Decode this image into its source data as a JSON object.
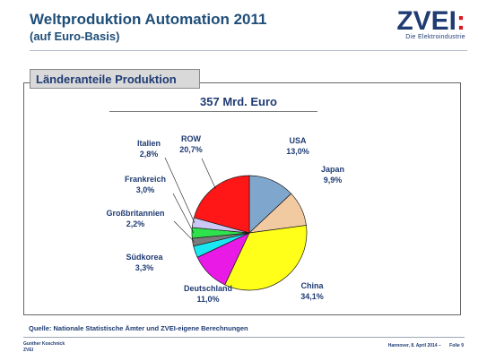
{
  "header": {
    "title": "Weltproduktion Automation 2011",
    "subtitle": "(auf Euro-Basis)"
  },
  "logo": {
    "text": "ZVEI",
    "colon": ":",
    "tagline": "Die Elektroindustrie"
  },
  "section_title": "Länderanteile Produktion",
  "chart_data": {
    "type": "pie",
    "total_label": "357 Mrd. Euro",
    "slices": [
      {
        "label": "USA",
        "value": 13.0,
        "value_label": "13,0%",
        "color": "#7fa7cd"
      },
      {
        "label": "Japan",
        "value": 9.9,
        "value_label": "9,9%",
        "color": "#f2caa2"
      },
      {
        "label": "China",
        "value": 34.1,
        "value_label": "34,1%",
        "color": "#ffff1a"
      },
      {
        "label": "Deutschland",
        "value": 11.0,
        "value_label": "11,0%",
        "color": "#ea1ae6"
      },
      {
        "label": "Südkorea",
        "value": 3.3,
        "value_label": "3,3%",
        "color": "#19e8f2"
      },
      {
        "label": "Großbritannien",
        "value": 2.2,
        "value_label": "2,2%",
        "color": "#7c7c7c"
      },
      {
        "label": "Frankreich",
        "value": 3.0,
        "value_label": "3,0%",
        "color": "#2fe24d"
      },
      {
        "label": "Italien",
        "value": 2.8,
        "value_label": "2,8%",
        "color": "#cbc8f5"
      },
      {
        "label": "ROW",
        "value": 20.7,
        "value_label": "20,7%",
        "color": "#ff1616"
      }
    ]
  },
  "source": "Quelle: Nationale Statistische Ämter und ZVEI-eigene Berechnungen",
  "footer": {
    "author": "Gunther Koschnick",
    "org": "ZVEI",
    "date": "Hannover, 8. April 2014 –",
    "page": "Folie 9"
  }
}
